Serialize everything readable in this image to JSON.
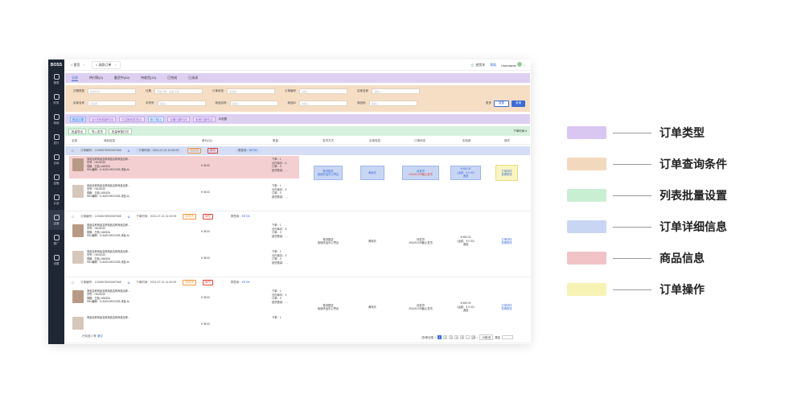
{
  "app": {
    "logo": "BOSS",
    "nav": [
      {
        "label": "报表",
        "icon": "chart-icon"
      },
      {
        "label": "财务",
        "icon": "coin-icon"
      },
      {
        "label": "商城",
        "icon": "home-icon"
      },
      {
        "label": "发行",
        "icon": "folder-icon"
      },
      {
        "label": "仓库",
        "icon": "house-icon"
      },
      {
        "label": "金融",
        "icon": "refresh-icon"
      },
      {
        "label": "计费",
        "icon": "calc-icon"
      },
      {
        "label": "运营",
        "icon": "doc-icon"
      },
      {
        "label": "推广",
        "icon": "user-icon"
      },
      {
        "label": "设置",
        "icon": "gear-icon"
      }
    ]
  },
  "topbar": {
    "tabs": [
      {
        "label": "首页"
      },
      {
        "label": "选款订单"
      }
    ],
    "cart": "进货车",
    "help": "帮助",
    "username": "Username"
  },
  "order_types": [
    "全部",
    "待付款(2)",
    "备货中(62)",
    "待收货(10)",
    "已完成",
    "已关闭"
  ],
  "query": {
    "row1": [
      {
        "label": "日期类型",
        "placeholder": "创建时间"
      },
      {
        "label": "日期",
        "placeholder": "开始日期 ~ 结束日期"
      },
      {
        "label": "订单状态",
        "placeholder": "请选择"
      },
      {
        "label": "订单编号",
        "placeholder": "请输入"
      },
      {
        "label": "买家名称",
        "placeholder": "请输入"
      }
    ],
    "row2": [
      {
        "label": "买家名称",
        "placeholder": "请选择"
      },
      {
        "label": "手机号",
        "placeholder": "请输入"
      },
      {
        "label": "商品名称",
        "placeholder": "请输入"
      },
      {
        "label": "商品ID",
        "placeholder": "请输入"
      },
      {
        "label": "商品码",
        "placeholder": "请输入"
      }
    ],
    "more": "更多",
    "reset": "重置",
    "search": "查询"
  },
  "filters": [
    "售后订单",
    "近3天即将超时(5)",
    "已过期待发货(3)",
    "新订单(1)",
    "近期已超时(0)",
    "拒绝已超时(2)"
  ],
  "filter_setting": "设置",
  "batch": {
    "buttons": [
      "批量导出",
      "导入发货",
      "批量审核打印"
    ],
    "sort": "下单时间"
  },
  "table": {
    "columns": [
      "全选",
      "商品信息",
      "单价(元)",
      "数量",
      "发货方式",
      "买家信息",
      "订单状态",
      "实收款",
      "操作"
    ]
  },
  "orders": [
    {
      "order_no_label": "订单编号：",
      "order_no": "12345678900987665",
      "time_label": "下单时间：",
      "time": "2021-07-21 14:20:09",
      "status_tag": "待发货",
      "tag2": "待付",
      "shop_label": "零售商：",
      "shop": "MTOK",
      "items": [
        {
          "name": "商品名称商品名称商品名称商品名称...",
          "code": "货号：HK21033",
          "spec": "规格：白色-145/52A",
          "sku": "SKU编码：D-A023-HK21033-浅色-4L",
          "price": "¥ 38.00",
          "qty": [
            "下单：1",
            "仓内库存：5",
            "订单：0",
            "缺货数量：- -"
          ]
        },
        {
          "name": "商品名称商品名称商品名称商品名称...",
          "code": "货号：HK21033",
          "spec": "规格：白色-145/52A",
          "sku": "SKU编码：D-A023-HK21033-浅色-4L",
          "price": "¥ 38.00",
          "qty": [
            "下单：1",
            "仓内库存：5",
            "订单：0",
            "缺货数量：- -"
          ]
        }
      ],
      "ship": [
        "物流配送",
        "极速货运中心寄出"
      ],
      "buyer": "黄晓东",
      "state": [
        "待发货",
        "2024/01/05截止发货"
      ],
      "paid": [
        "¥ 660.00",
        "（运费：¥ 0.00）",
        "退回"
      ],
      "ops": [
        "订单详情",
        "查看物流"
      ]
    },
    {
      "order_no_label": "订单编号：",
      "order_no": "12345678900987665",
      "time_label": "下单时间：",
      "time": "2021-07-21 14:20:09",
      "status_tag": "待发货",
      "tag2": "待付",
      "shop_label": "零售商：",
      "shop": "MTOK",
      "items": [
        {
          "name": "商品名称商品名称商品名称商品名称...",
          "code": "货号：HK21033",
          "spec": "规格：白色-145/52A",
          "sku": "SKU编码：D-A023-HK21033-浅色-4L",
          "price": "¥ 38.00",
          "qty": [
            "下单：1",
            "仓内库存：5",
            "订单：0",
            "缺货数量：- -"
          ]
        },
        {
          "name": "商品名称商品名称商品名称商品名称...",
          "code": "货号：HK21033",
          "spec": "规格：白色-145/52A",
          "sku": "SKU编码：D-A023-HK21033-浅色-4L",
          "price": "¥ 38.00",
          "qty": [
            "下单：1",
            "仓内库存：5",
            "订单：0",
            "缺货数量：- -"
          ]
        }
      ],
      "ship": [
        "物流配送",
        "极速货运中心寄出"
      ],
      "buyer": "黄晓东",
      "state": [
        "待发货",
        "2024/01/05截止发货"
      ],
      "paid": [
        "¥ 660.00",
        "（运费：¥ 0.00）",
        "退回"
      ],
      "ops": [
        "订单详情",
        "查看物流"
      ]
    },
    {
      "order_no_label": "订单编号：",
      "order_no": "12345678900987665",
      "time_label": "下单时间：",
      "time": "2021-07-21 14:20:09",
      "status_tag": "待发货",
      "tag2": "待付",
      "shop_label": "零售商：",
      "shop": "MTOK",
      "items": [
        {
          "name": "商品名称商品名称商品名称商品名称...",
          "code": "货号：HK21033",
          "spec": "规格：白色-145/52A",
          "sku": "SKU编码：D-A023-HK21033-浅色-4L",
          "price": "¥ 38.00",
          "qty": [
            "下单：1",
            "仓内库存：5",
            "订单：0",
            "缺货数量：- -"
          ]
        },
        {
          "name": "商品名称商品名称商品名称商品名称...",
          "code": "",
          "spec": "",
          "sku": "",
          "price": "¥ 38.00",
          "qty": [
            "下单：1"
          ]
        }
      ],
      "ship": [
        "物流配送",
        "极速货运中心寄出"
      ],
      "buyer": "黄晓东",
      "state": [
        "待发货",
        "2024/01/05截止发货"
      ],
      "paid": [
        "¥ 660.00",
        "（运费：¥ 0.00）",
        "退回"
      ],
      "ops": [
        "订单详情",
        "查看物流"
      ]
    }
  ],
  "footer": {
    "selected": "已勾选 0 条",
    "clear": "清空",
    "total": "共0条记录",
    "pages": [
      "1",
      "2",
      "3",
      "4",
      "5",
      "...",
      "20"
    ],
    "page_size": "10条/页",
    "goto": "跳至"
  },
  "legend": [
    {
      "label": "订单类型",
      "color": "#d9c6f1"
    },
    {
      "label": "订单查询条件",
      "color": "#f2d8bd"
    },
    {
      "label": "列表批量设置",
      "color": "#c9efd2"
    },
    {
      "label": "订单详细信息",
      "color": "#c9d6f3"
    },
    {
      "label": "商品信息",
      "color": "#f1c3c6"
    },
    {
      "label": "订单操作",
      "color": "#f7f3b4"
    }
  ]
}
